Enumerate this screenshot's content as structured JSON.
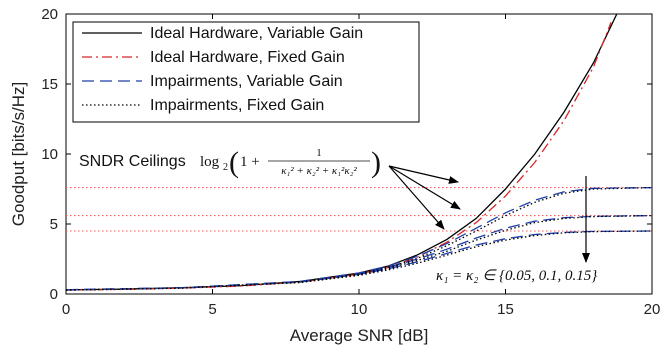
{
  "chart_data": {
    "type": "line",
    "xlabel": "Average SNR [dB]",
    "ylabel": "Goodput [bits/s/Hz]",
    "xlim": [
      0,
      20
    ],
    "ylim": [
      0,
      20
    ],
    "xticks": [
      "0",
      "5",
      "10",
      "15",
      "20"
    ],
    "yticks": [
      "0",
      "5",
      "10",
      "15",
      "20"
    ],
    "grid": false,
    "legend_position": "top-left",
    "series": [
      {
        "name": "Ideal Hardware, Variable Gain",
        "color": "#000000",
        "style": "solid",
        "x": [
          0,
          2,
          4,
          6,
          8,
          10,
          11,
          12,
          13,
          14,
          15,
          16,
          17,
          18,
          18.8
        ],
        "y": [
          0.3,
          0.35,
          0.45,
          0.6,
          0.9,
          1.5,
          2.0,
          2.8,
          3.9,
          5.4,
          7.5,
          10.0,
          13.0,
          16.5,
          20.0
        ]
      },
      {
        "name": "Ideal Hardware, Fixed Gain",
        "color": "#d62728",
        "style": "dashdot",
        "x": [
          0,
          2,
          4,
          6,
          8,
          10,
          11,
          12,
          13,
          14,
          15,
          16,
          17,
          18,
          18.6
        ],
        "y": [
          0.28,
          0.33,
          0.42,
          0.57,
          0.85,
          1.42,
          1.9,
          2.65,
          3.7,
          5.1,
          7.0,
          9.4,
          12.4,
          16.2,
          19.4
        ]
      },
      {
        "name": "Impairments, Variable Gain",
        "color": "#1f3fa8",
        "style": "dashed",
        "group": [
          {
            "ceiling": 7.6,
            "x": [
              0,
              4,
              8,
              10,
              11,
              12,
              13,
              14,
              15,
              16,
              17,
              18,
              20
            ],
            "y": [
              0.3,
              0.45,
              0.9,
              1.5,
              2.0,
              2.7,
              3.6,
              4.7,
              5.8,
              6.7,
              7.3,
              7.55,
              7.6
            ]
          },
          {
            "ceiling": 5.6,
            "x": [
              0,
              4,
              8,
              10,
              11,
              12,
              13,
              14,
              15,
              16,
              17,
              18,
              20
            ],
            "y": [
              0.3,
              0.45,
              0.88,
              1.45,
              1.9,
              2.5,
              3.2,
              4.0,
              4.7,
              5.2,
              5.45,
              5.55,
              5.6
            ]
          },
          {
            "ceiling": 4.5,
            "x": [
              0,
              4,
              8,
              10,
              11,
              12,
              13,
              14,
              15,
              16,
              17,
              18,
              20
            ],
            "y": [
              0.3,
              0.44,
              0.86,
              1.4,
              1.8,
              2.3,
              2.9,
              3.5,
              3.95,
              4.25,
              4.4,
              4.47,
              4.5
            ]
          }
        ]
      },
      {
        "name": "Impairments, Fixed Gain",
        "color": "#000000",
        "style": "dotted",
        "group": [
          {
            "ceiling": 7.6,
            "x": [
              0,
              4,
              8,
              10,
              11,
              12,
              13,
              14,
              15,
              16,
              17,
              18,
              20
            ],
            "y": [
              0.28,
              0.43,
              0.85,
              1.42,
              1.9,
              2.55,
              3.45,
              4.5,
              5.6,
              6.55,
              7.2,
              7.5,
              7.6
            ]
          },
          {
            "ceiling": 5.6,
            "x": [
              0,
              4,
              8,
              10,
              11,
              12,
              13,
              14,
              15,
              16,
              17,
              18,
              20
            ],
            "y": [
              0.28,
              0.43,
              0.84,
              1.38,
              1.82,
              2.4,
              3.05,
              3.85,
              4.55,
              5.1,
              5.4,
              5.53,
              5.6
            ]
          },
          {
            "ceiling": 4.5,
            "x": [
              0,
              4,
              8,
              10,
              11,
              12,
              13,
              14,
              15,
              16,
              17,
              18,
              20
            ],
            "y": [
              0.28,
              0.42,
              0.82,
              1.33,
              1.72,
              2.2,
              2.78,
              3.38,
              3.85,
              4.18,
              4.37,
              4.46,
              4.5
            ]
          }
        ]
      }
    ],
    "ceilings": {
      "values": [
        7.6,
        5.6,
        4.5
      ],
      "color": "#e06060",
      "style": "dotted"
    },
    "annotations": {
      "sndr_label": "SNDR Ceilings",
      "sndr_formula_prefix": "log",
      "sndr_formula_sub": "2",
      "sndr_formula_body": "1 +",
      "sndr_formula_num": "1",
      "sndr_formula_den": "κ₁² + κ₂² + κ₁²κ₂²",
      "kappa_text": "κ₁ = κ₂ ∈ {0.05, 0.1, 0.15}"
    }
  }
}
